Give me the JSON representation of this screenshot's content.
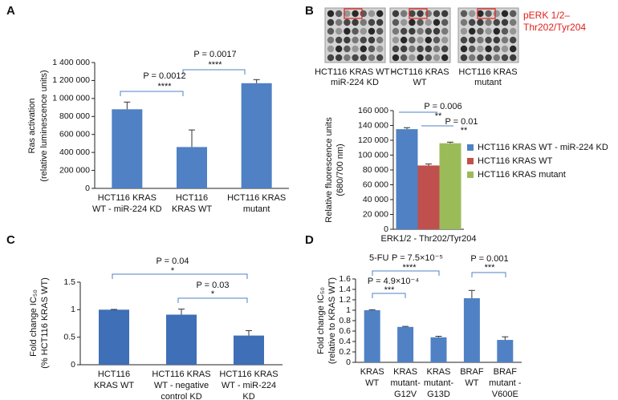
{
  "chart_data": [
    {
      "type": "bar",
      "panel": "A",
      "ylabel": [
        "Ras activation",
        "(relative luminescence units)"
      ],
      "categories": [
        [
          "HCT116 KRAS",
          "WT - miR-224 KD"
        ],
        [
          "HCT116",
          "KRAS WT"
        ],
        [
          "HCT116 KRAS",
          "mutant"
        ]
      ],
      "values": [
        880000,
        460000,
        1170000
      ],
      "errors": [
        80000,
        190000,
        40000
      ],
      "color": "#4f81c4",
      "ylim": [
        0,
        1400000
      ],
      "yticks": [
        0,
        {
          "value": 200000,
          "label": "200 000"
        },
        {
          "value": 400000,
          "label": "400 000"
        },
        {
          "value": 600000,
          "label": "600 000"
        },
        {
          "value": 800000,
          "label": "800 000"
        },
        {
          "value": 1000000,
          "label": "1 000 000"
        },
        {
          "value": 1200000,
          "label": "1 200 000"
        },
        {
          "value": 1400000,
          "label": "1 400 000"
        }
      ],
      "annotations": [
        "P = 0.0012",
        "****",
        "P = 0.0017",
        "****"
      ]
    },
    {
      "type": "bar",
      "panel": "B",
      "blots": [
        [
          "HCT116 KRAS WT -",
          "miR-224 KD"
        ],
        [
          "HCT116 KRAS",
          "WT"
        ],
        [
          "HCT116 KRAS",
          "mutant"
        ]
      ],
      "blot_label": [
        "pERK 1/2–",
        "Thr202/Tyr204"
      ],
      "ylabel": [
        "Relative fluorescence units",
        "(680/700 nm)"
      ],
      "categories": [
        [
          "ERK1/2 - Thr202/Tyr204"
        ]
      ],
      "series": [
        {
          "name": "HCT116 KRAS WT - miR-224 KD",
          "color": "#4f81c4",
          "values": [
            135000
          ],
          "errors": [
            2000
          ]
        },
        {
          "name": "HCT116 KRAS WT",
          "color": "#c0504d",
          "values": [
            86000
          ],
          "errors": [
            2000
          ]
        },
        {
          "name": "HCT116 KRAS mutant",
          "color": "#9bbb59",
          "values": [
            116000
          ],
          "errors": [
            1500
          ]
        }
      ],
      "ylim": [
        0,
        160000
      ],
      "yticks": [
        0,
        {
          "value": 20000,
          "label": "20 000"
        },
        {
          "value": 40000,
          "label": "40 000"
        },
        {
          "value": 60000,
          "label": "60 000"
        },
        {
          "value": 80000,
          "label": "80 000"
        },
        {
          "value": 100000,
          "label": "100 000"
        },
        {
          "value": 120000,
          "label": "120 000"
        },
        {
          "value": 140000,
          "label": "140 000"
        },
        {
          "value": 160000,
          "label": "160 000"
        }
      ],
      "legend": "right",
      "annotations": [
        "P = 0.006",
        "**",
        "P = 0.01",
        "**"
      ]
    },
    {
      "type": "bar",
      "panel": "C",
      "ylabel": [
        "Fold change IC₅₀",
        "(% HCT116 KRAS WT)"
      ],
      "categories": [
        [
          "HCT116",
          "KRAS WT"
        ],
        [
          "HCT116 KRAS",
          "WT - negative",
          "control KD"
        ],
        [
          "HCT116 KRAS",
          "WT - miR-224",
          "KD"
        ]
      ],
      "values": [
        1,
        0.91,
        0.53
      ],
      "errors": [
        0.005,
        0.1,
        0.09
      ],
      "color": "#3f6fb6",
      "ylim": [
        0,
        1.5
      ],
      "yticks": [
        0,
        0.5,
        1,
        1.5
      ],
      "annotations": [
        "P = 0.04",
        "*",
        "P = 0.03",
        "*"
      ]
    },
    {
      "type": "bar",
      "panel": "D",
      "title": "5-FU",
      "ylabel": [
        "Fold change IC₅₀",
        "(relative to KRAS WT)"
      ],
      "categories": [
        [
          "KRAS",
          "WT"
        ],
        [
          "KRAS",
          "mutant-",
          "G12V"
        ],
        [
          "KRAS",
          "mutant-",
          "G13D"
        ],
        [
          "BRAF",
          "WT"
        ],
        [
          "BRAF",
          "mutant -",
          "V600E"
        ]
      ],
      "values": [
        1,
        0.68,
        0.48,
        1.23,
        0.43
      ],
      "errors": [
        0.01,
        0.01,
        0.02,
        0.15,
        0.06
      ],
      "color": "#4f81c4",
      "ylim": [
        0,
        1.6
      ],
      "yticks": [
        0,
        0.2,
        0.4,
        0.6,
        0.8,
        1,
        1.2,
        1.4,
        1.6
      ],
      "annotations": [
        "P = 4.9×10⁻⁴",
        "***",
        "P = 7.5×10⁻⁵",
        "****",
        "P = 0.001",
        "***"
      ]
    }
  ]
}
